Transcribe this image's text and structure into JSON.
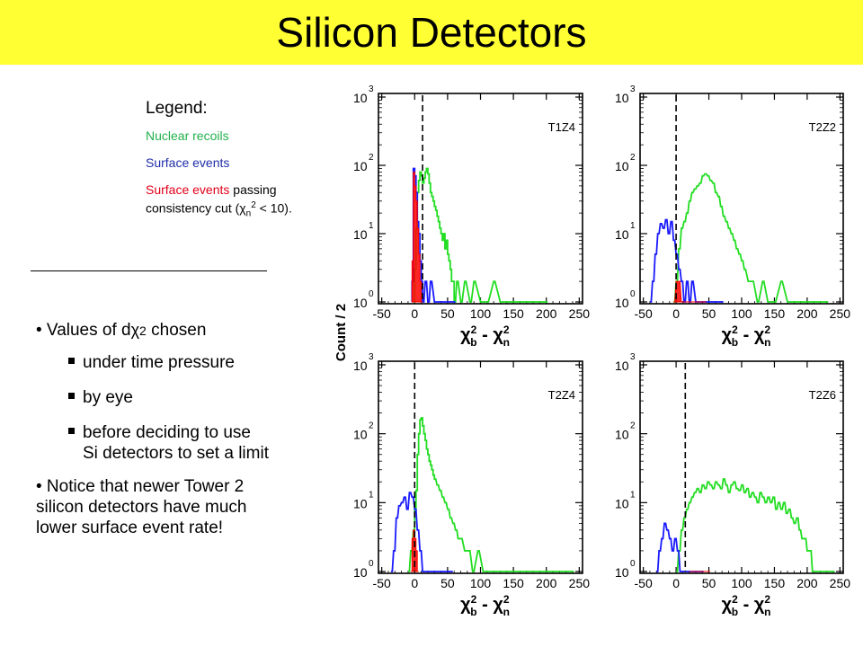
{
  "title": "Silicon Detectors",
  "legend": {
    "heading": "Legend:",
    "nuclear": "Nuclear recoils",
    "surface": "Surface events",
    "passing_red": "Surface events",
    "passing_black_1": " passing",
    "passing_black_2": "consistency cut (χ",
    "passing_sub": "n",
    "passing_sup": "2",
    "passing_black_3": " < 10)."
  },
  "bullets": {
    "b1_pre": "• Values of d",
    "b1_chi": "χ",
    "b1_sub": "2",
    "b1_post": " chosen",
    "sub1": "under time pressure",
    "sub2": "by eye",
    "sub3a": "before deciding to use",
    "sub3b": "Si detectors to set a limit",
    "b2a": "• Notice that newer Tower 2",
    "b2b": "silicon detectors have much",
    "b2c": "lower surface event rate!"
  },
  "colors": {
    "nuclear": "#22dd22",
    "surface": "#1a1aff",
    "passing": "#ff0000",
    "title_bg": "#ffff33"
  },
  "chart_data": {
    "type": "histogram-grid",
    "ylabel": "Count / 2",
    "x_label_parts": {
      "chi": "χ",
      "sup": "2",
      "sub_b": "b",
      "sub_n": "n",
      "minus": "-"
    },
    "x_ticks": [
      -50,
      0,
      50,
      100,
      150,
      200,
      250
    ],
    "x_tick_labels": [
      "-50",
      "0",
      "50",
      "100",
      "150",
      "200",
      "250"
    ],
    "xlim": [
      -55,
      255
    ],
    "y_scale": "log",
    "ylim": [
      1,
      1000
    ],
    "y_tick_labels": [
      {
        "base": "10",
        "exp": "0"
      },
      {
        "base": "10",
        "exp": "1"
      },
      {
        "base": "10",
        "exp": "2"
      },
      {
        "base": "10",
        "exp": "3"
      }
    ],
    "panels": [
      {
        "name": "T1Z4",
        "cut": 12,
        "nuclear": [
          [
            -2,
            1
          ],
          [
            0,
            3
          ],
          [
            2,
            12
          ],
          [
            4,
            40
          ],
          [
            6,
            60
          ],
          [
            8,
            80
          ],
          [
            10,
            70
          ],
          [
            12,
            55
          ],
          [
            14,
            65
          ],
          [
            16,
            80
          ],
          [
            18,
            90
          ],
          [
            20,
            75
          ],
          [
            22,
            55
          ],
          [
            24,
            40
          ],
          [
            26,
            35
          ],
          [
            28,
            30
          ],
          [
            30,
            25
          ],
          [
            32,
            22
          ],
          [
            34,
            18
          ],
          [
            36,
            15
          ],
          [
            38,
            12
          ],
          [
            40,
            10
          ],
          [
            42,
            8
          ],
          [
            44,
            10
          ],
          [
            46,
            6
          ],
          [
            48,
            8
          ],
          [
            50,
            5
          ],
          [
            52,
            4
          ],
          [
            54,
            3
          ],
          [
            56,
            2
          ],
          [
            58,
            2
          ],
          [
            60,
            1
          ],
          [
            64,
            2
          ],
          [
            70,
            1
          ],
          [
            76,
            2
          ],
          [
            84,
            1
          ],
          [
            90,
            2
          ],
          [
            100,
            1
          ],
          [
            110,
            1
          ],
          [
            120,
            2
          ],
          [
            130,
            1
          ],
          [
            150,
            1
          ],
          [
            170,
            1
          ],
          [
            190,
            1
          ],
          [
            200,
            1
          ]
        ],
        "surface": [
          [
            -4,
            2
          ],
          [
            -2,
            90
          ],
          [
            0,
            70
          ],
          [
            2,
            40
          ],
          [
            4,
            15
          ],
          [
            6,
            10
          ],
          [
            8,
            4
          ],
          [
            10,
            2
          ],
          [
            12,
            1
          ],
          [
            16,
            2
          ],
          [
            20,
            1
          ],
          [
            24,
            2
          ],
          [
            30,
            1
          ],
          [
            40,
            1
          ],
          [
            60,
            1
          ]
        ],
        "passing": [
          [
            -4,
            4
          ],
          [
            -2,
            80
          ],
          [
            0,
            50
          ],
          [
            2,
            30
          ],
          [
            4,
            12
          ],
          [
            6,
            5
          ],
          [
            8,
            2
          ],
          [
            10,
            1
          ]
        ]
      },
      {
        "name": "T2Z2",
        "cut": 0,
        "nuclear": [
          [
            -4,
            1
          ],
          [
            0,
            2
          ],
          [
            4,
            6
          ],
          [
            8,
            12
          ],
          [
            12,
            15
          ],
          [
            16,
            20
          ],
          [
            20,
            30
          ],
          [
            24,
            40
          ],
          [
            28,
            45
          ],
          [
            32,
            50
          ],
          [
            36,
            55
          ],
          [
            40,
            70
          ],
          [
            44,
            75
          ],
          [
            48,
            70
          ],
          [
            52,
            60
          ],
          [
            56,
            55
          ],
          [
            60,
            40
          ],
          [
            64,
            35
          ],
          [
            68,
            25
          ],
          [
            72,
            18
          ],
          [
            76,
            15
          ],
          [
            80,
            12
          ],
          [
            84,
            10
          ],
          [
            88,
            8
          ],
          [
            92,
            6
          ],
          [
            96,
            5
          ],
          [
            100,
            4
          ],
          [
            104,
            3
          ],
          [
            110,
            2
          ],
          [
            116,
            2
          ],
          [
            124,
            1
          ],
          [
            132,
            2
          ],
          [
            140,
            1
          ],
          [
            150,
            1
          ],
          [
            160,
            2
          ],
          [
            170,
            1
          ],
          [
            190,
            1
          ],
          [
            210,
            1
          ],
          [
            230,
            1
          ]
        ],
        "surface": [
          [
            -40,
            1
          ],
          [
            -36,
            2
          ],
          [
            -32,
            5
          ],
          [
            -28,
            10
          ],
          [
            -24,
            14
          ],
          [
            -20,
            12
          ],
          [
            -16,
            16
          ],
          [
            -12,
            10
          ],
          [
            -8,
            15
          ],
          [
            -4,
            8
          ],
          [
            0,
            5
          ],
          [
            4,
            3
          ],
          [
            8,
            2
          ],
          [
            12,
            1
          ],
          [
            16,
            2
          ],
          [
            20,
            1
          ],
          [
            24,
            2
          ],
          [
            30,
            1
          ],
          [
            36,
            1
          ],
          [
            44,
            1
          ],
          [
            56,
            1
          ],
          [
            70,
            1
          ]
        ],
        "passing": [
          [
            -4,
            1
          ],
          [
            0,
            2
          ],
          [
            4,
            2
          ],
          [
            8,
            1
          ],
          [
            16,
            1
          ],
          [
            28,
            1
          ],
          [
            44,
            1
          ]
        ]
      },
      {
        "name": "T2Z4",
        "cut": 0,
        "nuclear": [
          [
            -10,
            1
          ],
          [
            -6,
            2
          ],
          [
            -2,
            4
          ],
          [
            0,
            8
          ],
          [
            2,
            15
          ],
          [
            4,
            50
          ],
          [
            6,
            100
          ],
          [
            8,
            160
          ],
          [
            10,
            170
          ],
          [
            12,
            130
          ],
          [
            14,
            100
          ],
          [
            16,
            80
          ],
          [
            18,
            60
          ],
          [
            20,
            50
          ],
          [
            22,
            40
          ],
          [
            24,
            35
          ],
          [
            26,
            30
          ],
          [
            28,
            25
          ],
          [
            30,
            22
          ],
          [
            34,
            18
          ],
          [
            38,
            15
          ],
          [
            42,
            12
          ],
          [
            46,
            10
          ],
          [
            50,
            8
          ],
          [
            54,
            6
          ],
          [
            58,
            5
          ],
          [
            62,
            4
          ],
          [
            66,
            3
          ],
          [
            70,
            3
          ],
          [
            76,
            2
          ],
          [
            82,
            2
          ],
          [
            88,
            1
          ],
          [
            96,
            2
          ],
          [
            104,
            1
          ],
          [
            112,
            1
          ],
          [
            124,
            1
          ],
          [
            140,
            1
          ],
          [
            160,
            1
          ],
          [
            190,
            1
          ],
          [
            220,
            1
          ],
          [
            240,
            1
          ]
        ],
        "surface": [
          [
            -36,
            1
          ],
          [
            -32,
            2
          ],
          [
            -28,
            6
          ],
          [
            -24,
            9
          ],
          [
            -20,
            10
          ],
          [
            -16,
            12
          ],
          [
            -12,
            8
          ],
          [
            -8,
            14
          ],
          [
            -4,
            12
          ],
          [
            0,
            8
          ],
          [
            4,
            4
          ],
          [
            8,
            2
          ],
          [
            12,
            1
          ],
          [
            20,
            1
          ],
          [
            28,
            1
          ],
          [
            36,
            1
          ],
          [
            56,
            1
          ]
        ],
        "passing": [
          [
            -6,
            1
          ],
          [
            -4,
            3
          ],
          [
            -2,
            4
          ],
          [
            0,
            3
          ],
          [
            2,
            2
          ],
          [
            4,
            1
          ]
        ]
      },
      {
        "name": "T2Z6",
        "cut": 14,
        "nuclear": [
          [
            0,
            1
          ],
          [
            4,
            2
          ],
          [
            8,
            4
          ],
          [
            12,
            6
          ],
          [
            16,
            8
          ],
          [
            20,
            10
          ],
          [
            24,
            12
          ],
          [
            28,
            14
          ],
          [
            32,
            16
          ],
          [
            36,
            14
          ],
          [
            40,
            18
          ],
          [
            44,
            16
          ],
          [
            48,
            20
          ],
          [
            52,
            18
          ],
          [
            56,
            16
          ],
          [
            60,
            20
          ],
          [
            64,
            18
          ],
          [
            68,
            16
          ],
          [
            72,
            22
          ],
          [
            76,
            18
          ],
          [
            80,
            14
          ],
          [
            84,
            18
          ],
          [
            88,
            20
          ],
          [
            92,
            16
          ],
          [
            96,
            15
          ],
          [
            100,
            18
          ],
          [
            104,
            14
          ],
          [
            108,
            16
          ],
          [
            112,
            12
          ],
          [
            116,
            14
          ],
          [
            120,
            12
          ],
          [
            124,
            10
          ],
          [
            128,
            14
          ],
          [
            132,
            12
          ],
          [
            136,
            10
          ],
          [
            140,
            12
          ],
          [
            144,
            10
          ],
          [
            148,
            12
          ],
          [
            152,
            8
          ],
          [
            156,
            10
          ],
          [
            160,
            8
          ],
          [
            164,
            10
          ],
          [
            168,
            7
          ],
          [
            172,
            8
          ],
          [
            176,
            6
          ],
          [
            180,
            5
          ],
          [
            184,
            6
          ],
          [
            188,
            4
          ],
          [
            192,
            3
          ],
          [
            196,
            3
          ],
          [
            200,
            2
          ],
          [
            204,
            2
          ],
          [
            208,
            1
          ],
          [
            214,
            1
          ],
          [
            220,
            1
          ],
          [
            230,
            1
          ],
          [
            240,
            1
          ]
        ],
        "surface": [
          [
            -30,
            1
          ],
          [
            -26,
            2
          ],
          [
            -22,
            3
          ],
          [
            -18,
            5
          ],
          [
            -14,
            4
          ],
          [
            -10,
            3
          ],
          [
            -6,
            2
          ],
          [
            -2,
            3
          ],
          [
            2,
            2
          ],
          [
            6,
            1
          ],
          [
            12,
            1
          ],
          [
            22,
            1
          ],
          [
            40,
            1
          ]
        ],
        "passing": [
          [
            20,
            1
          ],
          [
            30,
            1
          ],
          [
            50,
            1
          ]
        ]
      }
    ]
  }
}
